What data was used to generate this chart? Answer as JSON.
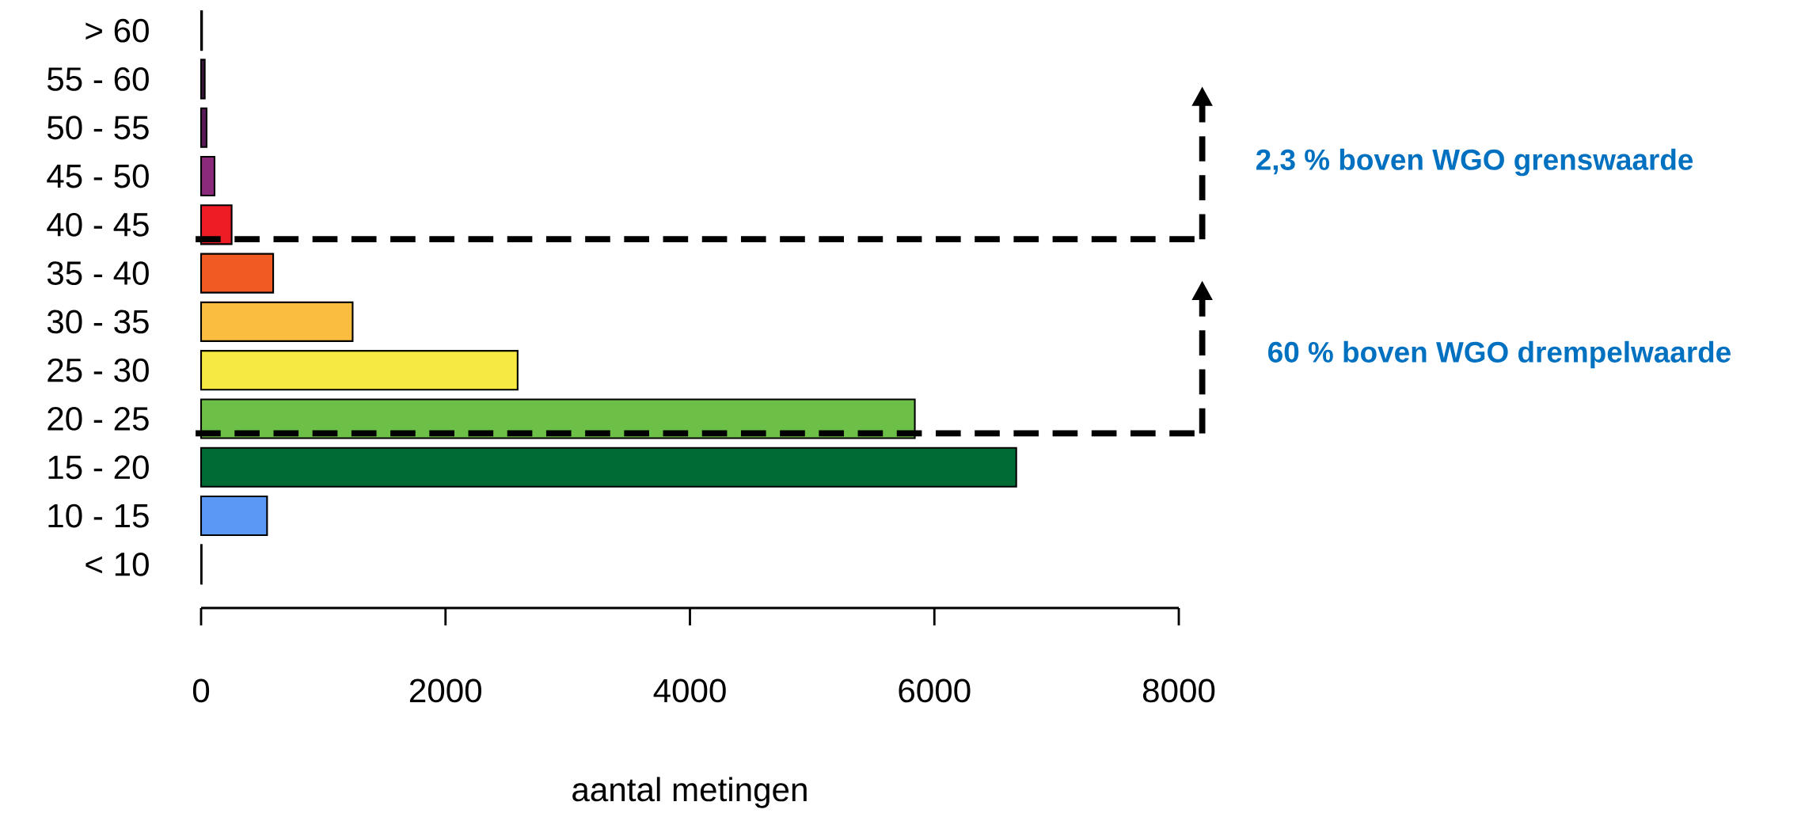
{
  "chart_data": {
    "type": "bar",
    "orientation": "horizontal",
    "categories": [
      "> 60",
      "55 - 60",
      "50 - 55",
      "45 - 50",
      "40 - 45",
      "35 - 40",
      "30 - 35",
      "25 - 30",
      "20 - 25",
      "15 - 20",
      "10 - 15",
      "< 10"
    ],
    "values": [
      8,
      30,
      45,
      110,
      250,
      590,
      1240,
      2590,
      5840,
      6670,
      540,
      5
    ],
    "colors": [
      "#2b1d2e",
      "#3d1740",
      "#5a1a5a",
      "#8b2a7a",
      "#ee1c25",
      "#f15a22",
      "#fbbd3f",
      "#f5e942",
      "#6cbf47",
      "#006b35",
      "#5b98f6",
      "#3a5fcd"
    ],
    "xlim": [
      0,
      8000
    ],
    "xticks": [
      0,
      2000,
      4000,
      6000,
      8000
    ],
    "xlabel": "aantal metingen",
    "annotations": [
      "2,3 % boven WGO grenswaarde",
      "60 % boven WGO drempelwaarde"
    ],
    "ref_lines": [
      {
        "axis": "y",
        "value": "40 - 45",
        "color": "#000000",
        "line_style": "dashed"
      },
      {
        "axis": "y",
        "value": "20 - 25",
        "color": "#000000",
        "line_style": "dashed"
      }
    ],
    "grid": false
  }
}
